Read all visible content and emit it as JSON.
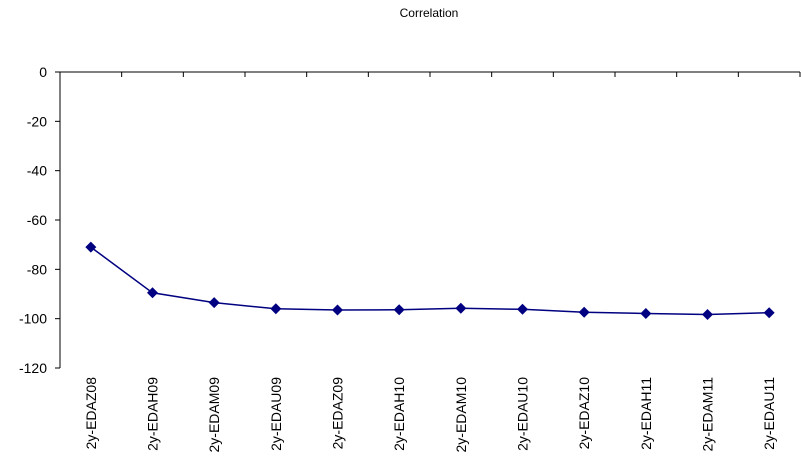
{
  "chart_data": {
    "type": "line",
    "title": "Correlation",
    "xlabel": "",
    "ylabel": "",
    "categories": [
      "2y-EDAZ08",
      "2y-EDAH09",
      "2y-EDAM09",
      "2y-EDAU09",
      "2y-EDAZ09",
      "2y-EDAH10",
      "2y-EDAM10",
      "2y-EDAU10",
      "2y-EDAZ10",
      "2y-EDAH11",
      "2y-EDAM11",
      "2y-EDAU11"
    ],
    "series": [
      {
        "values": [
          -71,
          -89.5,
          -93.5,
          -96,
          -96.5,
          -96.4,
          -95.8,
          -96.2,
          -97.4,
          -97.9,
          -98.3,
          -97.6
        ],
        "color": "#000080",
        "marker": "diamond"
      }
    ],
    "ylim": [
      -120,
      0
    ],
    "yticks": [
      0,
      -20,
      -40,
      -60,
      -80,
      -100,
      -120
    ],
    "grid": false,
    "legend": "none"
  }
}
